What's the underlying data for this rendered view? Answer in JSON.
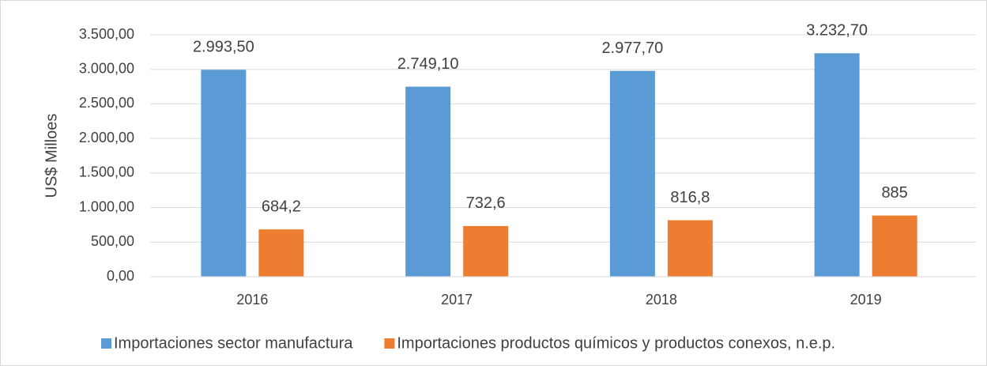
{
  "chart_data": {
    "type": "bar",
    "ylabel": "US$ Milloes",
    "categories": [
      "2016",
      "2017",
      "2018",
      "2019"
    ],
    "series": [
      {
        "name": "Importaciones sector manufactura",
        "color": "#5b9bd5",
        "values": [
          2993.5,
          2749.1,
          2977.7,
          3232.7
        ],
        "value_labels": [
          "2.993,50",
          "2.749,10",
          "2.977,70",
          "3.232,70"
        ]
      },
      {
        "name": "Importaciones productos químicos y productos conexos, n.e.p.",
        "color": "#ed7d31",
        "values": [
          684.2,
          732.6,
          816.8,
          885
        ],
        "value_labels": [
          "684,2",
          "732,6",
          "816,8",
          "885"
        ]
      }
    ],
    "ylim": [
      0,
      3500
    ],
    "yticks": [
      {
        "value": 0,
        "label": "0,00"
      },
      {
        "value": 500,
        "label": "500,00"
      },
      {
        "value": 1000,
        "label": "1.000,00"
      },
      {
        "value": 1500,
        "label": "1.500,00"
      },
      {
        "value": 2000,
        "label": "2.000,00"
      },
      {
        "value": 2500,
        "label": "2.500,00"
      },
      {
        "value": 3000,
        "label": "3.000,00"
      },
      {
        "value": 3500,
        "label": "3.500,00"
      }
    ],
    "grid": true,
    "legend": "bottom"
  }
}
